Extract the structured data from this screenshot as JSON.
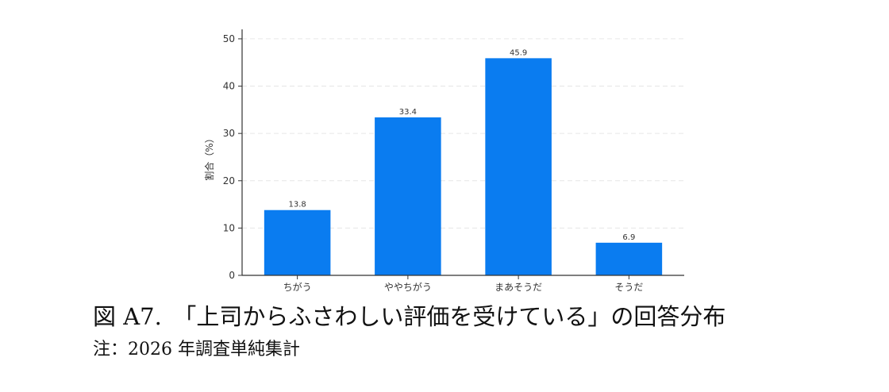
{
  "chart_data": {
    "type": "bar",
    "categories": [
      "ちがう",
      "ややちがう",
      "まあそうだ",
      "そうだ"
    ],
    "values": [
      13.8,
      33.4,
      45.9,
      6.9
    ],
    "data_labels": [
      "13.8",
      "33.4",
      "45.9",
      "6.9"
    ],
    "title": "",
    "xlabel": "",
    "ylabel": "割合（%）",
    "ylim": [
      0,
      52
    ],
    "yticks": [
      0,
      10,
      20,
      30,
      40,
      50
    ],
    "grid": true,
    "bar_color": "#0a7cf0",
    "grid_color": "#e6e6e6",
    "axis_color": "#333333"
  },
  "figure": {
    "caption": "図 A7.　「上司からふさわしい評価を受けている」の回答分布",
    "note": "注：2026 年調査単純集計"
  }
}
